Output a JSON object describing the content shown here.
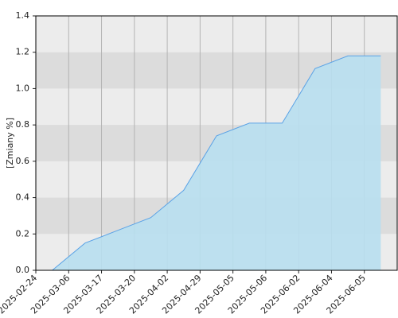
{
  "chart_data": {
    "type": "area",
    "y_label": "[Zmiany %]",
    "categories": [
      "2025-02-24",
      "2025-03-06",
      "2025-03-17",
      "2025-03-20",
      "2025-04-02",
      "2025-04-29",
      "2025-05-05",
      "2025-05-06",
      "2025-06-02",
      "2025-06-04",
      "2025-06-05"
    ],
    "values": [
      0.0,
      0.15,
      0.22,
      0.29,
      0.44,
      0.74,
      0.81,
      0.81,
      1.11,
      1.18,
      1.18
    ],
    "color": "#5aa2e6",
    "fill": "#b8dff0",
    "ylim": [
      0,
      1.4
    ],
    "yticks": [
      {
        "value": 0,
        "label": "0.0"
      },
      0.2,
      0.4,
      0.6,
      0.8,
      {
        "value": 1,
        "label": "1.0"
      },
      1.2,
      1.4
    ],
    "grid": true
  }
}
